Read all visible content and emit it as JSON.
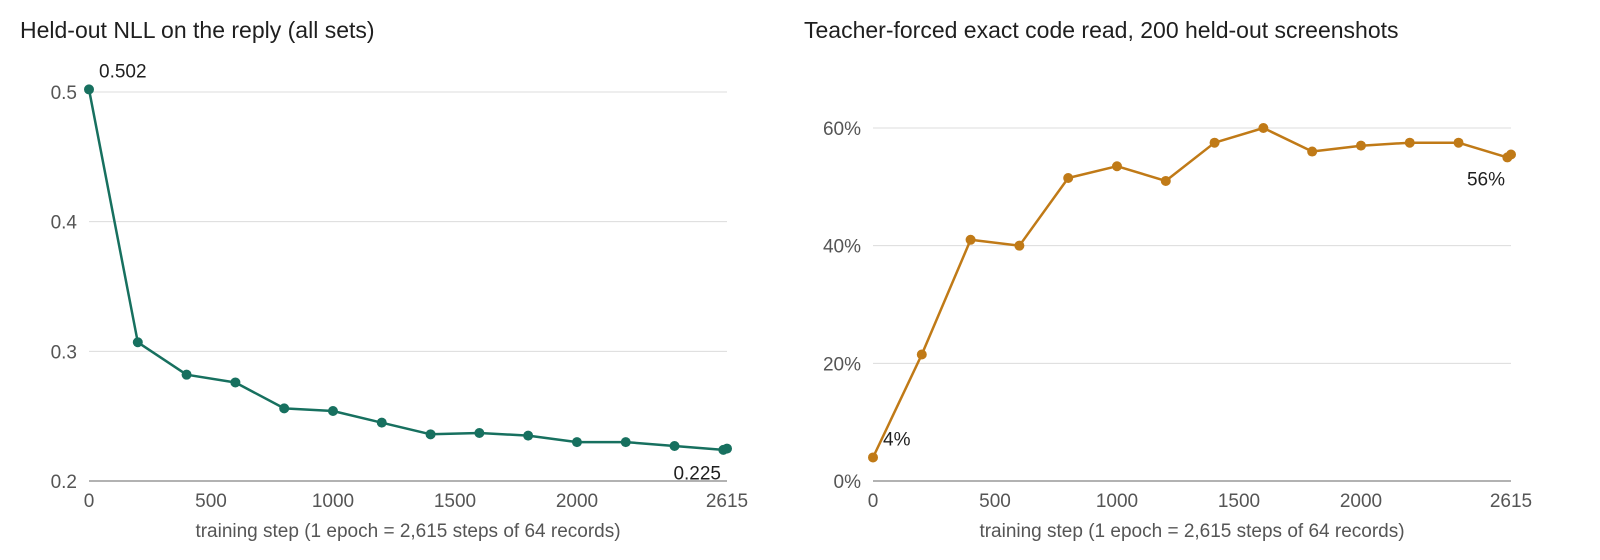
{
  "chart_data": [
    {
      "type": "line",
      "title": "Held-out NLL on the reply (all sets)",
      "xlabel": "training step (1 epoch = 2,615 steps of 64 records)",
      "ylabel": "",
      "xlim": [
        0,
        2615
      ],
      "ylim": [
        0.2,
        0.5
      ],
      "x_ticks": [
        0,
        500,
        1000,
        1500,
        2000,
        2615
      ],
      "y_ticks": [
        0.2,
        0.3,
        0.4,
        0.5
      ],
      "y_tick_labels": [
        "0.2",
        "0.3",
        "0.4",
        "0.5"
      ],
      "grid": true,
      "color": "#17705f",
      "series": [
        {
          "x": [
            0,
            200,
            400,
            600,
            800,
            1000,
            1200,
            1400,
            1600,
            1800,
            2000,
            2200,
            2400,
            2600,
            2615
          ],
          "y": [
            0.502,
            0.307,
            0.282,
            0.276,
            0.256,
            0.254,
            0.245,
            0.236,
            0.237,
            0.235,
            0.23,
            0.23,
            0.227,
            0.224,
            0.225
          ]
        }
      ],
      "annotations": [
        {
          "text": "0.502",
          "x": 0,
          "y": 0.502,
          "position": "above-right"
        },
        {
          "text": "0.225",
          "x": 2615,
          "y": 0.225,
          "position": "below-left"
        }
      ]
    },
    {
      "type": "line",
      "title": "Teacher-forced exact code read, 200 held-out screenshots",
      "xlabel": "training step (1 epoch = 2,615 steps of 64 records)",
      "ylabel": "",
      "xlim": [
        0,
        2615
      ],
      "ylim": [
        0,
        60
      ],
      "x_ticks": [
        0,
        500,
        1000,
        1500,
        2000,
        2615
      ],
      "y_ticks": [
        0,
        20,
        40,
        60
      ],
      "y_tick_labels": [
        "0%",
        "20%",
        "40%",
        "60%"
      ],
      "grid": true,
      "color": "#c07a17",
      "series": [
        {
          "x": [
            0,
            200,
            400,
            600,
            800,
            1000,
            1200,
            1400,
            1600,
            1800,
            2000,
            2200,
            2400,
            2600,
            2615
          ],
          "y": [
            4,
            21.5,
            41,
            40,
            51.5,
            53.5,
            51,
            57.5,
            60,
            56,
            57,
            57.5,
            57.5,
            55,
            55.5
          ]
        }
      ],
      "annotations": [
        {
          "text": "4%",
          "x": 0,
          "y": 4,
          "position": "above-right"
        },
        {
          "text": "56%",
          "x": 2615,
          "y": 55.5,
          "position": "below-left"
        }
      ]
    }
  ]
}
